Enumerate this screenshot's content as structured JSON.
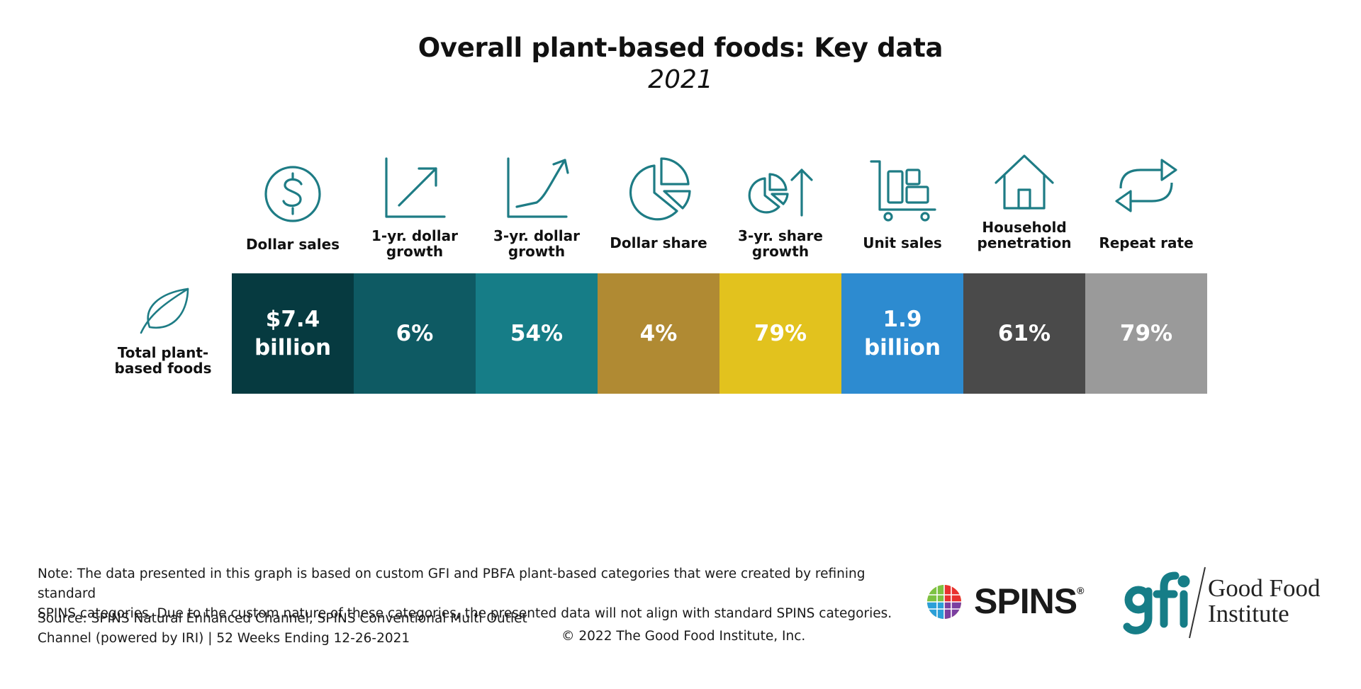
{
  "title": "Overall plant-based foods: Key data",
  "subtitle": "2021",
  "chart_data": {
    "type": "table",
    "row": "Total plant-based foods",
    "columns": [
      {
        "label": "Dollar sales",
        "value": "$7.4 billion",
        "icon": "dollar-circle-icon",
        "color": "#063a40"
      },
      {
        "label": "1-yr. dollar growth",
        "value": "6%",
        "icon": "growth-arrow-icon",
        "color": "#0e5a63"
      },
      {
        "label": "3-yr. dollar growth",
        "value": "54%",
        "icon": "growth-curve-icon",
        "color": "#167d87"
      },
      {
        "label": "Dollar share",
        "value": "4%",
        "icon": "pie-chart-icon",
        "color": "#b08a33"
      },
      {
        "label": "3-yr. share growth",
        "value": "79%",
        "icon": "pie-up-arrow-icon",
        "color": "#e2c21e"
      },
      {
        "label": "Unit sales",
        "value": "1.9 billion",
        "icon": "cart-boxes-icon",
        "color": "#2d8bd0"
      },
      {
        "label": "Household penetration",
        "value": "61%",
        "icon": "house-icon",
        "color": "#4a4a4a"
      },
      {
        "label": "Repeat rate",
        "value": "79%",
        "icon": "repeat-arrows-icon",
        "color": "#9a9a9a"
      }
    ]
  },
  "row_icon": "leaf-icon",
  "footer": {
    "note_line1": "Note: The data presented in this graph is based on custom GFI and PBFA plant-based categories that were created by refining standard",
    "note_line2": "SPINS categories. Due to the custom nature of these categories, the presented data will not align with standard SPINS categories.",
    "source_line1": "Source: SPINS Natural Enhanced Channel, SPINS Conventional Multi Outlet",
    "source_line2": "Channel (powered by IRI) | 52 Weeks Ending 12-26-2021",
    "copyright": "© 2022 The Good Food Institute, Inc."
  },
  "logos": {
    "spins_text": "SPINS",
    "spins_reg": "®",
    "gfi_line1": "Good Food",
    "gfi_line2": "Institute"
  },
  "colors": {
    "icon_stroke": "#1e7c85",
    "gfi_teal": "#167d87"
  }
}
